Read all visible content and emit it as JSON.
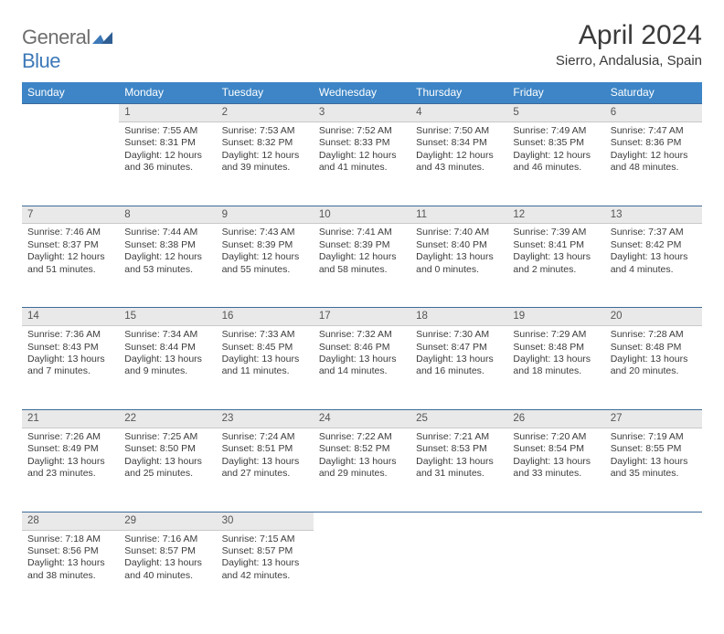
{
  "logo": {
    "text1": "General",
    "text2": "Blue"
  },
  "title": "April 2024",
  "subtitle": "Sierro, Andalusia, Spain",
  "colors": {
    "header_bg": "#3d85c6",
    "header_text": "#ffffff",
    "daynum_bg": "#e9e9e9",
    "rule": "#3d6a99",
    "logo_blue": "#3d79b8",
    "logo_grey": "#6e6e6e",
    "body_bg": "#ffffff",
    "text": "#393939"
  },
  "fonts": {
    "family": "Arial",
    "title_size_pt": 22,
    "subtitle_size_pt": 11,
    "th_size_pt": 9,
    "cell_size_pt": 8
  },
  "weekdays": [
    "Sunday",
    "Monday",
    "Tuesday",
    "Wednesday",
    "Thursday",
    "Friday",
    "Saturday"
  ],
  "weeks": [
    [
      null,
      {
        "n": "1",
        "sr": "Sunrise: 7:55 AM",
        "ss": "Sunset: 8:31 PM",
        "dl": "Daylight: 12 hours and 36 minutes."
      },
      {
        "n": "2",
        "sr": "Sunrise: 7:53 AM",
        "ss": "Sunset: 8:32 PM",
        "dl": "Daylight: 12 hours and 39 minutes."
      },
      {
        "n": "3",
        "sr": "Sunrise: 7:52 AM",
        "ss": "Sunset: 8:33 PM",
        "dl": "Daylight: 12 hours and 41 minutes."
      },
      {
        "n": "4",
        "sr": "Sunrise: 7:50 AM",
        "ss": "Sunset: 8:34 PM",
        "dl": "Daylight: 12 hours and 43 minutes."
      },
      {
        "n": "5",
        "sr": "Sunrise: 7:49 AM",
        "ss": "Sunset: 8:35 PM",
        "dl": "Daylight: 12 hours and 46 minutes."
      },
      {
        "n": "6",
        "sr": "Sunrise: 7:47 AM",
        "ss": "Sunset: 8:36 PM",
        "dl": "Daylight: 12 hours and 48 minutes."
      }
    ],
    [
      {
        "n": "7",
        "sr": "Sunrise: 7:46 AM",
        "ss": "Sunset: 8:37 PM",
        "dl": "Daylight: 12 hours and 51 minutes."
      },
      {
        "n": "8",
        "sr": "Sunrise: 7:44 AM",
        "ss": "Sunset: 8:38 PM",
        "dl": "Daylight: 12 hours and 53 minutes."
      },
      {
        "n": "9",
        "sr": "Sunrise: 7:43 AM",
        "ss": "Sunset: 8:39 PM",
        "dl": "Daylight: 12 hours and 55 minutes."
      },
      {
        "n": "10",
        "sr": "Sunrise: 7:41 AM",
        "ss": "Sunset: 8:39 PM",
        "dl": "Daylight: 12 hours and 58 minutes."
      },
      {
        "n": "11",
        "sr": "Sunrise: 7:40 AM",
        "ss": "Sunset: 8:40 PM",
        "dl": "Daylight: 13 hours and 0 minutes."
      },
      {
        "n": "12",
        "sr": "Sunrise: 7:39 AM",
        "ss": "Sunset: 8:41 PM",
        "dl": "Daylight: 13 hours and 2 minutes."
      },
      {
        "n": "13",
        "sr": "Sunrise: 7:37 AM",
        "ss": "Sunset: 8:42 PM",
        "dl": "Daylight: 13 hours and 4 minutes."
      }
    ],
    [
      {
        "n": "14",
        "sr": "Sunrise: 7:36 AM",
        "ss": "Sunset: 8:43 PM",
        "dl": "Daylight: 13 hours and 7 minutes."
      },
      {
        "n": "15",
        "sr": "Sunrise: 7:34 AM",
        "ss": "Sunset: 8:44 PM",
        "dl": "Daylight: 13 hours and 9 minutes."
      },
      {
        "n": "16",
        "sr": "Sunrise: 7:33 AM",
        "ss": "Sunset: 8:45 PM",
        "dl": "Daylight: 13 hours and 11 minutes."
      },
      {
        "n": "17",
        "sr": "Sunrise: 7:32 AM",
        "ss": "Sunset: 8:46 PM",
        "dl": "Daylight: 13 hours and 14 minutes."
      },
      {
        "n": "18",
        "sr": "Sunrise: 7:30 AM",
        "ss": "Sunset: 8:47 PM",
        "dl": "Daylight: 13 hours and 16 minutes."
      },
      {
        "n": "19",
        "sr": "Sunrise: 7:29 AM",
        "ss": "Sunset: 8:48 PM",
        "dl": "Daylight: 13 hours and 18 minutes."
      },
      {
        "n": "20",
        "sr": "Sunrise: 7:28 AM",
        "ss": "Sunset: 8:48 PM",
        "dl": "Daylight: 13 hours and 20 minutes."
      }
    ],
    [
      {
        "n": "21",
        "sr": "Sunrise: 7:26 AM",
        "ss": "Sunset: 8:49 PM",
        "dl": "Daylight: 13 hours and 23 minutes."
      },
      {
        "n": "22",
        "sr": "Sunrise: 7:25 AM",
        "ss": "Sunset: 8:50 PM",
        "dl": "Daylight: 13 hours and 25 minutes."
      },
      {
        "n": "23",
        "sr": "Sunrise: 7:24 AM",
        "ss": "Sunset: 8:51 PM",
        "dl": "Daylight: 13 hours and 27 minutes."
      },
      {
        "n": "24",
        "sr": "Sunrise: 7:22 AM",
        "ss": "Sunset: 8:52 PM",
        "dl": "Daylight: 13 hours and 29 minutes."
      },
      {
        "n": "25",
        "sr": "Sunrise: 7:21 AM",
        "ss": "Sunset: 8:53 PM",
        "dl": "Daylight: 13 hours and 31 minutes."
      },
      {
        "n": "26",
        "sr": "Sunrise: 7:20 AM",
        "ss": "Sunset: 8:54 PM",
        "dl": "Daylight: 13 hours and 33 minutes."
      },
      {
        "n": "27",
        "sr": "Sunrise: 7:19 AM",
        "ss": "Sunset: 8:55 PM",
        "dl": "Daylight: 13 hours and 35 minutes."
      }
    ],
    [
      {
        "n": "28",
        "sr": "Sunrise: 7:18 AM",
        "ss": "Sunset: 8:56 PM",
        "dl": "Daylight: 13 hours and 38 minutes."
      },
      {
        "n": "29",
        "sr": "Sunrise: 7:16 AM",
        "ss": "Sunset: 8:57 PM",
        "dl": "Daylight: 13 hours and 40 minutes."
      },
      {
        "n": "30",
        "sr": "Sunrise: 7:15 AM",
        "ss": "Sunset: 8:57 PM",
        "dl": "Daylight: 13 hours and 42 minutes."
      },
      null,
      null,
      null,
      null
    ]
  ]
}
